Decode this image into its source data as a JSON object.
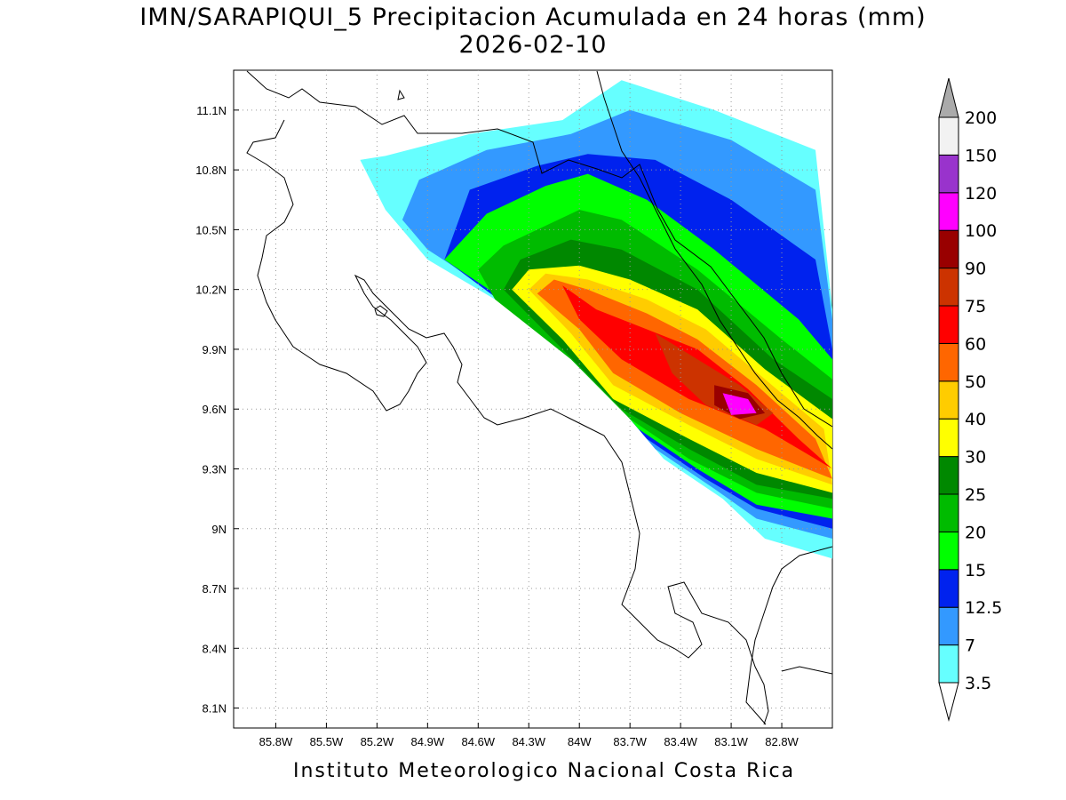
{
  "title_line1": "IMN/SARAPIQUI_5 Precipitacion Acumulada en 24 horas (mm)",
  "title_line2": "2026-02-10",
  "footer": "Instituto Meteorologico Nacional Costa Rica",
  "map": {
    "lon_range": [
      -86.05,
      -82.5
    ],
    "lat_range": [
      8.0,
      11.3
    ],
    "lat_ticks": [
      "11.1N",
      "10.8N",
      "10.5N",
      "10.2N",
      "9.9N",
      "9.6N",
      "9.3N",
      "9N",
      "8.7N",
      "8.4N",
      "8.1N"
    ],
    "lat_values": [
      11.1,
      10.8,
      10.5,
      10.2,
      9.9,
      9.6,
      9.3,
      9.0,
      8.7,
      8.4,
      8.1
    ],
    "lon_ticks": [
      "85.8W",
      "85.5W",
      "85.2W",
      "84.9W",
      "84.6W",
      "84.3W",
      "84W",
      "83.7W",
      "83.4W",
      "83.1W",
      "82.8W"
    ],
    "lon_values": [
      -85.8,
      -85.5,
      -85.2,
      -84.9,
      -84.6,
      -84.3,
      -84.0,
      -83.7,
      -83.4,
      -83.1,
      -82.8
    ],
    "grid": "dotted"
  },
  "colorbar": {
    "labels": [
      "3.5",
      "7",
      "12.5",
      "15",
      "20",
      "25",
      "30",
      "40",
      "50",
      "60",
      "75",
      "90",
      "100",
      "120",
      "150",
      "200"
    ],
    "colors": [
      "#ffffff",
      "#66ffff",
      "#3399ff",
      "#0022ee",
      "#00ff00",
      "#00bb00",
      "#008800",
      "#ffff00",
      "#ffcc00",
      "#ff6600",
      "#ff0000",
      "#cc3300",
      "#990000",
      "#ff00ff",
      "#9933cc",
      "#f2f2f2",
      "#aaaaaa"
    ],
    "units": "mm"
  },
  "precip_bands": [
    {
      "name": "band-3.5",
      "color": "#66ffff",
      "points": [
        [
          -85.15,
          10.87
        ],
        [
          -84.65,
          10.98
        ],
        [
          -84.1,
          11.05
        ],
        [
          -83.75,
          11.25
        ],
        [
          -83.2,
          11.1
        ],
        [
          -82.6,
          10.9
        ],
        [
          -82.5,
          10.1
        ],
        [
          -82.5,
          8.85
        ],
        [
          -82.9,
          8.95
        ],
        [
          -83.15,
          9.15
        ],
        [
          -83.5,
          9.35
        ],
        [
          -83.9,
          9.75
        ],
        [
          -84.3,
          10.05
        ],
        [
          -84.9,
          10.35
        ],
        [
          -85.15,
          10.6
        ],
        [
          -85.3,
          10.85
        ]
      ]
    },
    {
      "name": "band-7",
      "color": "#3399ff",
      "points": [
        [
          -84.95,
          10.75
        ],
        [
          -84.55,
          10.9
        ],
        [
          -84.05,
          10.98
        ],
        [
          -83.7,
          11.1
        ],
        [
          -83.1,
          10.95
        ],
        [
          -82.6,
          10.7
        ],
        [
          -82.5,
          10.05
        ],
        [
          -82.5,
          8.95
        ],
        [
          -82.95,
          9.05
        ],
        [
          -83.2,
          9.2
        ],
        [
          -83.55,
          9.4
        ],
        [
          -83.95,
          9.8
        ],
        [
          -84.35,
          10.1
        ],
        [
          -84.9,
          10.4
        ],
        [
          -85.05,
          10.55
        ]
      ]
    },
    {
      "name": "band-12.5",
      "color": "#0022ee",
      "points": [
        [
          -84.65,
          10.7
        ],
        [
          -84.25,
          10.82
        ],
        [
          -83.95,
          10.88
        ],
        [
          -83.55,
          10.85
        ],
        [
          -83.1,
          10.65
        ],
        [
          -82.6,
          10.35
        ],
        [
          -82.5,
          9.9
        ],
        [
          -82.5,
          9.0
        ],
        [
          -82.95,
          9.1
        ],
        [
          -83.25,
          9.25
        ],
        [
          -83.6,
          9.45
        ],
        [
          -84.0,
          9.85
        ],
        [
          -84.4,
          10.1
        ],
        [
          -84.8,
          10.35
        ]
      ]
    },
    {
      "name": "band-15",
      "color": "#00ff00",
      "points": [
        [
          -84.55,
          10.58
        ],
        [
          -84.2,
          10.72
        ],
        [
          -83.95,
          10.78
        ],
        [
          -83.6,
          10.65
        ],
        [
          -83.2,
          10.4
        ],
        [
          -82.7,
          10.05
        ],
        [
          -82.5,
          9.85
        ],
        [
          -82.5,
          9.05
        ],
        [
          -82.95,
          9.12
        ],
        [
          -83.3,
          9.3
        ],
        [
          -83.65,
          9.5
        ],
        [
          -84.0,
          9.85
        ],
        [
          -84.45,
          10.15
        ],
        [
          -84.8,
          10.35
        ]
      ]
    },
    {
      "name": "band-25",
      "color": "#00bb00",
      "points": [
        [
          -84.45,
          10.42
        ],
        [
          -84.0,
          10.6
        ],
        [
          -83.75,
          10.55
        ],
        [
          -83.3,
          10.3
        ],
        [
          -82.8,
          9.95
        ],
        [
          -82.5,
          9.75
        ],
        [
          -82.5,
          9.1
        ],
        [
          -82.95,
          9.18
        ],
        [
          -83.35,
          9.35
        ],
        [
          -83.7,
          9.55
        ],
        [
          -84.05,
          9.85
        ],
        [
          -84.5,
          10.15
        ],
        [
          -84.6,
          10.3
        ]
      ]
    },
    {
      "name": "band-30",
      "color": "#008800",
      "points": [
        [
          -84.35,
          10.35
        ],
        [
          -84.05,
          10.45
        ],
        [
          -83.75,
          10.4
        ],
        [
          -83.3,
          10.2
        ],
        [
          -82.85,
          9.85
        ],
        [
          -82.5,
          9.65
        ],
        [
          -82.5,
          9.15
        ],
        [
          -82.95,
          9.22
        ],
        [
          -83.35,
          9.4
        ],
        [
          -83.75,
          9.6
        ],
        [
          -84.1,
          9.9
        ],
        [
          -84.45,
          10.2
        ]
      ]
    },
    {
      "name": "band-40",
      "color": "#ffff00",
      "points": [
        [
          -84.3,
          10.3
        ],
        [
          -84.0,
          10.32
        ],
        [
          -83.7,
          10.25
        ],
        [
          -83.3,
          10.1
        ],
        [
          -82.9,
          9.8
        ],
        [
          -82.5,
          9.55
        ],
        [
          -82.5,
          9.18
        ],
        [
          -82.95,
          9.28
        ],
        [
          -83.35,
          9.45
        ],
        [
          -83.8,
          9.65
        ],
        [
          -84.1,
          9.95
        ],
        [
          -84.4,
          10.2
        ]
      ]
    },
    {
      "name": "band-50",
      "color": "#ffcc00",
      "points": [
        [
          -84.2,
          10.28
        ],
        [
          -83.95,
          10.25
        ],
        [
          -83.6,
          10.15
        ],
        [
          -83.25,
          10.0
        ],
        [
          -82.9,
          9.75
        ],
        [
          -82.55,
          9.5
        ],
        [
          -82.5,
          9.22
        ],
        [
          -82.95,
          9.35
        ],
        [
          -83.35,
          9.52
        ],
        [
          -83.8,
          9.72
        ],
        [
          -84.05,
          9.98
        ],
        [
          -84.3,
          10.2
        ]
      ]
    },
    {
      "name": "band-60",
      "color": "#ff6600",
      "points": [
        [
          -84.15,
          10.25
        ],
        [
          -83.95,
          10.2
        ],
        [
          -83.6,
          10.08
        ],
        [
          -83.3,
          9.95
        ],
        [
          -82.95,
          9.72
        ],
        [
          -82.6,
          9.45
        ],
        [
          -82.5,
          9.25
        ],
        [
          -82.95,
          9.4
        ],
        [
          -83.4,
          9.58
        ],
        [
          -83.8,
          9.78
        ],
        [
          -84.0,
          10.0
        ],
        [
          -84.25,
          10.18
        ]
      ]
    },
    {
      "name": "band-75",
      "color": "#ff0000",
      "points": [
        [
          -84.1,
          10.22
        ],
        [
          -83.9,
          10.1
        ],
        [
          -83.6,
          10.0
        ],
        [
          -83.3,
          9.9
        ],
        [
          -83.0,
          9.7
        ],
        [
          -82.7,
          9.45
        ],
        [
          -82.5,
          9.3
        ],
        [
          -82.9,
          9.5
        ],
        [
          -83.35,
          9.65
        ],
        [
          -83.75,
          9.85
        ],
        [
          -84.0,
          10.05
        ]
      ]
    },
    {
      "name": "band-90",
      "color": "#cc3300",
      "points": [
        [
          -83.55,
          9.98
        ],
        [
          -83.3,
          9.85
        ],
        [
          -83.05,
          9.72
        ],
        [
          -82.85,
          9.58
        ],
        [
          -82.95,
          9.52
        ],
        [
          -83.25,
          9.62
        ],
        [
          -83.45,
          9.78
        ]
      ]
    },
    {
      "name": "band-100",
      "color": "#990000",
      "points": [
        [
          -83.2,
          9.72
        ],
        [
          -83.0,
          9.68
        ],
        [
          -82.9,
          9.58
        ],
        [
          -83.05,
          9.55
        ],
        [
          -83.2,
          9.62
        ]
      ]
    },
    {
      "name": "band-120",
      "color": "#ff00ff",
      "points": [
        [
          -83.15,
          9.68
        ],
        [
          -83.0,
          9.65
        ],
        [
          -82.95,
          9.58
        ],
        [
          -83.1,
          9.57
        ]
      ]
    }
  ]
}
